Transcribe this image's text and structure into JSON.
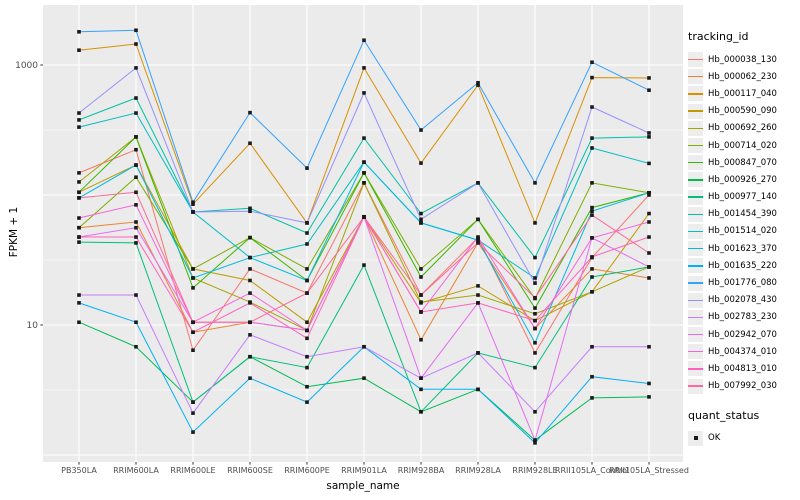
{
  "figure": {
    "panel_background": "#EBEBEB",
    "gridline_color": "#FFFFFF",
    "point_color": "#1A1A1A",
    "axis_text_color": "#4D4D4D"
  },
  "chart_data": {
    "type": "line",
    "xlabel": "sample_name",
    "ylabel": "FPKM + 1",
    "y_scale": "log10",
    "ylim": [
      1,
      3000
    ],
    "grid": "major-and-minor",
    "legend_position": "right",
    "point_marker": "filled-square",
    "y_ticks": [
      {
        "value": 10,
        "label": "10"
      },
      {
        "value": 1000,
        "label": "1000"
      }
    ],
    "y_major_gridlines": [
      1,
      10,
      100,
      1000
    ],
    "y_minor_gridlines": [
      3.162,
      31.62,
      316.2
    ],
    "categories": [
      "PB350LA",
      "RRIM600LA",
      "RRIM600LE",
      "RRIM600SE",
      "RRIM600PE",
      "RRIM901LA",
      "RRIM928BA",
      "RRIM928LA",
      "RRIM928LE",
      "RRII105LA_Control",
      "RRII105LA_Stressed"
    ],
    "series": [
      {
        "name": "Hb_000038_130",
        "color": "#F8766D",
        "values": [
          148,
          223,
          6.4,
          27,
          17.6,
          124,
          17,
          47,
          6.1,
          33,
          100
        ]
      },
      {
        "name": "Hb_000062_230",
        "color": "#EA8331",
        "values": [
          56,
          62,
          8.8,
          10.5,
          9.1,
          68,
          7.7,
          43,
          9.4,
          27,
          23
        ]
      },
      {
        "name": "Hb_000117_040",
        "color": "#D89000",
        "values": [
          1300,
          1450,
          85,
          250,
          61,
          950,
          176,
          700,
          61,
          800,
          795
        ]
      },
      {
        "name": "Hb_000590_090",
        "color": "#C09B00",
        "values": [
          105,
          170,
          27,
          22,
          10.5,
          68,
          14.8,
          20,
          10.8,
          18,
          72
        ]
      },
      {
        "name": "Hb_000692_260",
        "color": "#A3A500",
        "values": [
          126,
          280,
          23,
          15,
          9.1,
          124,
          15,
          17,
          12.2,
          18,
          28
        ]
      },
      {
        "name": "Hb_000714_020",
        "color": "#7CAE00",
        "values": [
          56,
          137,
          27,
          47,
          27,
          148,
          27,
          65,
          16,
          124,
          104
        ]
      },
      {
        "name": "Hb_000847_070",
        "color": "#39B600",
        "values": [
          105,
          280,
          19.3,
          47,
          22,
          148,
          23.4,
          65,
          13.5,
          80,
          104
        ]
      },
      {
        "name": "Hb_000926_270",
        "color": "#00BB4E",
        "values": [
          10.5,
          6.8,
          2.55,
          5.7,
          3.35,
          3.9,
          2.15,
          3.2,
          1.3,
          2.75,
          2.8
        ]
      },
      {
        "name": "Hb_000977_140",
        "color": "#00BF7D",
        "values": [
          43.4,
          42.8,
          2.55,
          5.7,
          4.7,
          28.9,
          2.15,
          6.1,
          4.7,
          23.4,
          28
        ]
      },
      {
        "name": "Hb_001454_390",
        "color": "#00C1A7",
        "values": [
          378,
          557,
          74,
          79,
          51,
          274,
          72,
          124,
          33,
          274,
          280
        ]
      },
      {
        "name": "Hb_001514_020",
        "color": "#00BFC4",
        "values": [
          333,
          427,
          74,
          33,
          42,
          179,
          61,
          45,
          23,
          230,
          175
        ]
      },
      {
        "name": "Hb_001623_370",
        "color": "#00BAE3",
        "values": [
          95,
          170,
          23,
          33,
          22,
          179,
          61,
          45,
          7.3,
          75,
          104
        ]
      },
      {
        "name": "Hb_001635_220",
        "color": "#00B0F6",
        "values": [
          14.8,
          10.5,
          1.5,
          3.9,
          2.55,
          6.8,
          3.2,
          3.2,
          1.24,
          4.0,
          3.55
        ]
      },
      {
        "name": "Hb_001776_080",
        "color": "#35A2FF",
        "values": [
          1800,
          1850,
          88,
          430,
          161,
          1550,
          316,
          730,
          124,
          1050,
          640
        ]
      },
      {
        "name": "Hb_002078_430",
        "color": "#9590FF",
        "values": [
          427,
          950,
          74,
          75,
          61,
          610,
          65,
          124,
          21,
          475,
          300
        ]
      },
      {
        "name": "Hb_002783_230",
        "color": "#C77CFF",
        "values": [
          17,
          17,
          2.1,
          8.4,
          5.7,
          6.8,
          3.9,
          6.1,
          2.15,
          6.8,
          6.8
        ]
      },
      {
        "name": "Hb_002942_070",
        "color": "#E76BF3",
        "values": [
          47.5,
          56,
          10.5,
          10.5,
          9.1,
          67.7,
          3.9,
          14.8,
          1.3,
          46.8,
          28
        ]
      },
      {
        "name": "Hb_004374_010",
        "color": "#FA62DB",
        "values": [
          66.5,
          84,
          10.5,
          17.6,
          9.1,
          67.7,
          12.6,
          47.5,
          9.4,
          46.8,
          62
        ]
      },
      {
        "name": "Hb_004813_010",
        "color": "#FF62BC",
        "values": [
          47.5,
          47.5,
          8.8,
          14.8,
          7.9,
          67.7,
          12.6,
          14.8,
          10.8,
          33.4,
          47.5
        ]
      },
      {
        "name": "Hb_007992_030",
        "color": "#FF6A98",
        "values": [
          95,
          105,
          10.5,
          10.5,
          17.6,
          67.7,
          17,
          42.8,
          16.2,
          70,
          35.8
        ]
      }
    ],
    "legend": {
      "tracking_id_title": "tracking_id",
      "quant_status_title": "quant_status",
      "quant_status_items": [
        {
          "label": "OK"
        }
      ]
    }
  }
}
